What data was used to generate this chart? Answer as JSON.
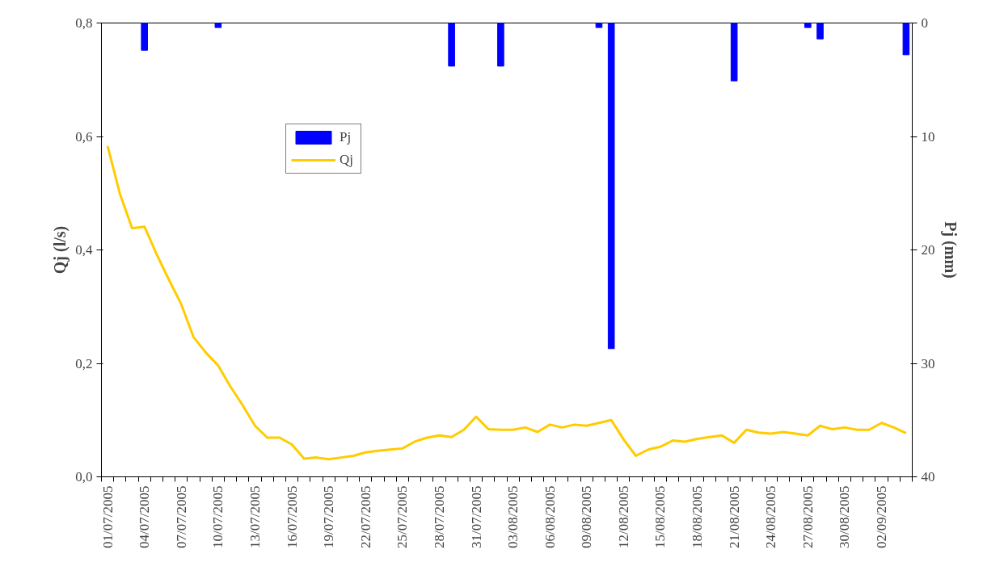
{
  "chart_data": {
    "type": "line",
    "ylabel": "Qj (l/s)",
    "y2label": "Pj (mm)",
    "categories": [
      "01/07/2005",
      null,
      null,
      "04/07/2005",
      null,
      null,
      "07/07/2005",
      null,
      null,
      "10/07/2005",
      null,
      null,
      "13/07/2005",
      null,
      null,
      "16/07/2005",
      null,
      null,
      "19/07/2005",
      null,
      null,
      "22/07/2005",
      null,
      null,
      "25/07/2005",
      null,
      null,
      "28/07/2005",
      null,
      null,
      "31/07/2005",
      null,
      null,
      "03/08/2005",
      null,
      null,
      "06/08/2005",
      null,
      null,
      "09/08/2005",
      null,
      null,
      "12/08/2005",
      null,
      null,
      "15/08/2005",
      null,
      null,
      "18/08/2005",
      null,
      null,
      "21/08/2005",
      null,
      null,
      "24/08/2005",
      null,
      null,
      "27/08/2005",
      null,
      null,
      "30/08/2005",
      null,
      null,
      "02/09/2005",
      null,
      null
    ],
    "series": [
      {
        "name": "Pj",
        "type": "bar",
        "axis": "y2",
        "color": "#0000ff",
        "values": [
          null,
          null,
          null,
          2.4,
          null,
          null,
          null,
          null,
          null,
          0.4,
          null,
          null,
          null,
          null,
          null,
          null,
          null,
          null,
          null,
          null,
          null,
          null,
          null,
          null,
          null,
          null,
          null,
          null,
          3.8,
          null,
          null,
          null,
          3.8,
          null,
          null,
          null,
          null,
          null,
          null,
          null,
          0.4,
          28.7,
          null,
          null,
          null,
          null,
          null,
          null,
          null,
          null,
          null,
          5.1,
          null,
          null,
          null,
          null,
          null,
          0.4,
          1.4,
          null,
          null,
          null,
          null,
          null,
          null,
          2.8
        ]
      },
      {
        "name": "Qj",
        "color": "#ffcc00",
        "values": [
          0.583,
          0.499,
          0.438,
          0.441,
          0.392,
          0.347,
          0.304,
          0.246,
          0.219,
          0.196,
          0.159,
          0.126,
          0.09,
          0.069,
          0.069,
          0.057,
          0.032,
          0.034,
          0.031,
          0.034,
          0.037,
          0.043,
          0.046,
          0.048,
          0.05,
          0.062,
          0.069,
          0.073,
          0.07,
          0.083,
          0.106,
          0.084,
          0.083,
          0.083,
          0.087,
          0.079,
          0.092,
          0.087,
          0.092,
          0.09,
          0.095,
          0.1,
          0.066,
          0.037,
          0.048,
          0.053,
          0.064,
          0.062,
          0.067,
          0.07,
          0.073,
          0.06,
          0.083,
          0.078,
          0.076,
          0.079,
          0.076,
          0.073,
          0.09,
          0.084,
          0.087,
          0.083,
          0.083,
          0.095,
          0.087,
          0.077
        ]
      }
    ],
    "ylim": [
      0,
      0.8
    ],
    "yticks": [
      {
        "value": 0,
        "label": "0,0"
      },
      {
        "value": 0.2,
        "label": "0,2"
      },
      {
        "value": 0.4,
        "label": "0,4"
      },
      {
        "value": 0.6,
        "label": "0,6"
      },
      {
        "value": 0.8,
        "label": "0,8"
      }
    ],
    "y2lim": [
      40,
      0
    ],
    "y2ticks": [
      0,
      10,
      20,
      30,
      40
    ],
    "legend": "top left"
  }
}
